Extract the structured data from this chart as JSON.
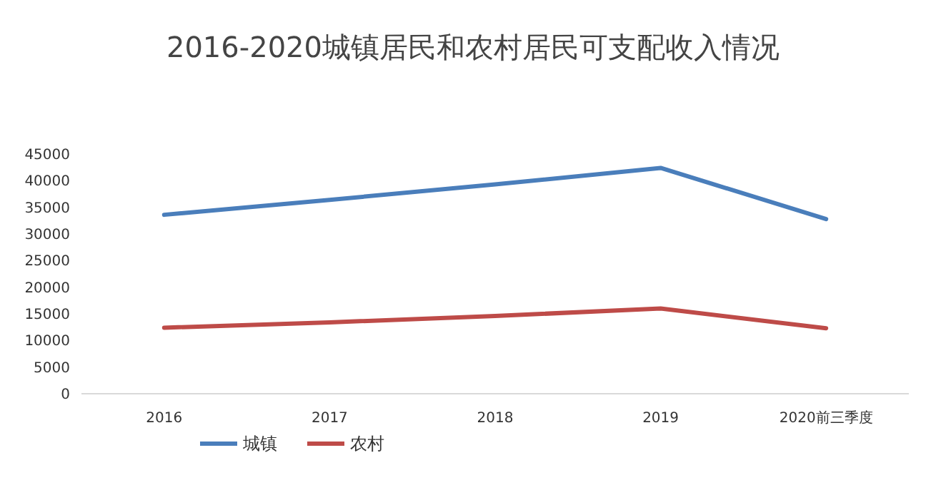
{
  "chart_data": {
    "type": "line",
    "title": "2016-2020城镇居民和农村居民可支配收入情况",
    "categories": [
      "2016",
      "2017",
      "2018",
      "2019",
      "2020前三季度"
    ],
    "series": [
      {
        "name": "城镇",
        "color": "#4a7ebb",
        "values": [
          33600,
          36400,
          39300,
          42400,
          32800
        ]
      },
      {
        "name": "农村",
        "color": "#be4b48",
        "values": [
          12400,
          13400,
          14600,
          16000,
          12300
        ]
      }
    ],
    "ylim": [
      0,
      45000
    ],
    "yticks": [
      0,
      5000,
      10000,
      15000,
      20000,
      25000,
      30000,
      35000,
      40000,
      45000
    ],
    "grid": false,
    "legend": "bottom left",
    "marker": "none",
    "line_style": "solid"
  }
}
